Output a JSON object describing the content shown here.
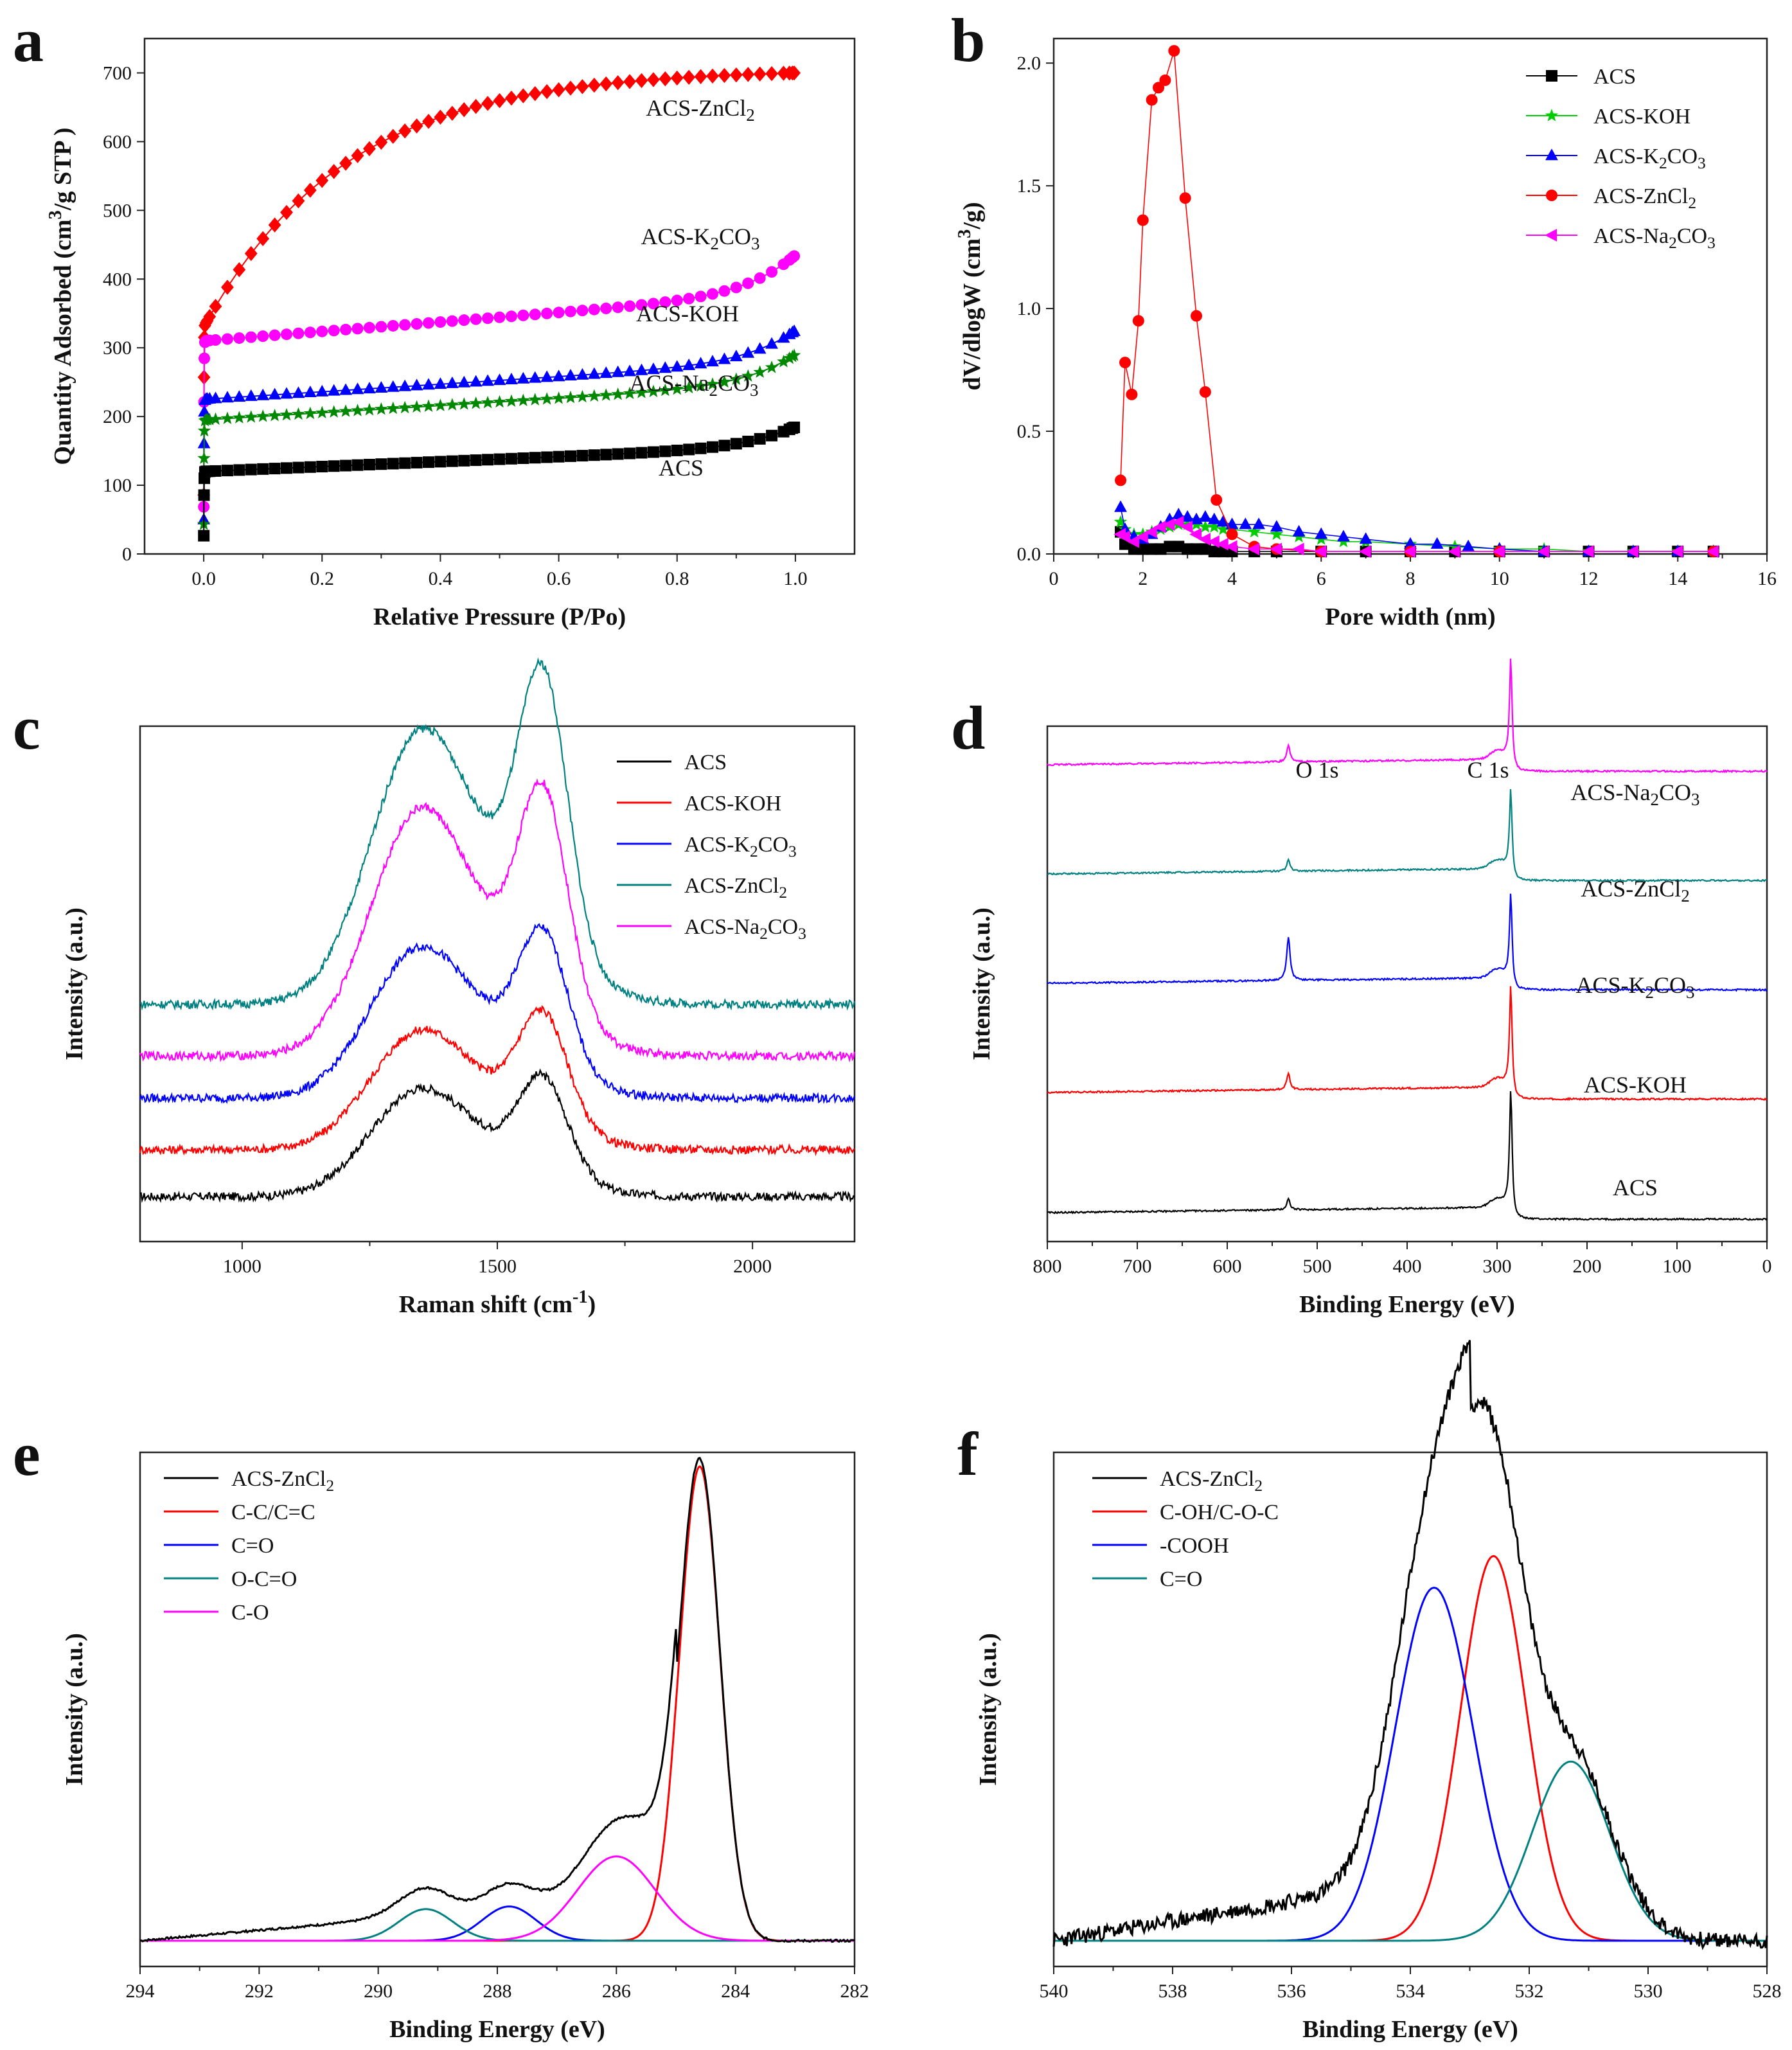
{
  "chart_data": [
    {
      "id": "a",
      "panel_label": "a",
      "type": "scatter",
      "xlabel": "Relative Pressure (P/Po)",
      "ylabel": "Quantity Adsorbed (cm3/g STP )",
      "xlim": [
        -0.1,
        1.1
      ],
      "ylim": [
        0,
        750
      ],
      "xticks": [
        "0.0",
        "0.2",
        "0.4",
        "0.6",
        "0.8",
        "1.0"
      ],
      "yticks": [
        "0",
        "100",
        "200",
        "300",
        "400",
        "500",
        "600",
        "700"
      ],
      "series": [
        {
          "name": "ACS-ZnCl2",
          "color": "#ff0000",
          "marker": "diamond",
          "plateau": 700,
          "knee": 330,
          "shape": "gradual"
        },
        {
          "name": "ACS-K2CO3",
          "color": "#ff00ff",
          "marker": "circle",
          "plateau": 435,
          "knee": 310,
          "shape": "flat"
        },
        {
          "name": "ACS-KOH",
          "color": "#0000ff",
          "marker": "triangle",
          "plateau": 325,
          "knee": 225,
          "shape": "flat"
        },
        {
          "name": "ACS-Na2CO3",
          "color": "#008800",
          "marker": "star",
          "plateau": 290,
          "knee": 195,
          "shape": "flat"
        },
        {
          "name": "ACS",
          "color": "#000000",
          "marker": "square",
          "plateau": 185,
          "knee": 120,
          "shape": "flat"
        }
      ],
      "annotations": [
        "ACS-ZnCl2",
        "ACS-K2CO3",
        "ACS-KOH",
        "ACS-Na2CO3",
        "ACS"
      ]
    },
    {
      "id": "b",
      "panel_label": "b",
      "type": "line",
      "xlabel": "Pore width (nm)",
      "ylabel": "dV/dlogW (cm3/g)",
      "xlim": [
        0,
        16
      ],
      "ylim": [
        0,
        2.1
      ],
      "xticks": [
        "0",
        "2",
        "4",
        "6",
        "8",
        "10",
        "12",
        "14",
        "16"
      ],
      "yticks": [
        "0.0",
        "0.5",
        "1.0",
        "1.5",
        "2.0"
      ],
      "legend": [
        "ACS",
        "ACS-KOH",
        "ACS-K2CO3",
        "ACS-ZnCl2",
        "ACS-Na2CO3"
      ],
      "series": [
        {
          "name": "ACS",
          "color": "#000000",
          "marker": "square",
          "x": [
            1.5,
            1.6,
            1.8,
            2.0,
            2.2,
            2.4,
            2.6,
            2.8,
            3.0,
            3.2,
            3.4,
            3.6,
            3.8,
            4.0,
            4.5,
            5.0,
            6.0,
            7.0,
            8.0,
            9.0,
            10.0,
            11.0,
            12.0,
            13.0,
            14.0,
            14.8
          ],
          "y": [
            0.09,
            0.04,
            0.02,
            0.02,
            0.02,
            0.02,
            0.03,
            0.03,
            0.02,
            0.02,
            0.02,
            0.01,
            0.01,
            0.01,
            0.01,
            0.01,
            0.01,
            0.01,
            0.01,
            0.01,
            0.01,
            0.01,
            0.01,
            0.01,
            0.01,
            0.01
          ]
        },
        {
          "name": "ACS-KOH",
          "color": "#00cc00",
          "marker": "star",
          "x": [
            1.5,
            1.6,
            1.8,
            2.0,
            2.2,
            2.4,
            2.6,
            2.8,
            3.0,
            3.2,
            3.4,
            3.6,
            3.8,
            4.0,
            4.5,
            5.0,
            5.5,
            6.0,
            6.5,
            7.0,
            8.0,
            9.0,
            10.0,
            11.0,
            12.0,
            13.0,
            14.0,
            14.8
          ],
          "y": [
            0.13,
            0.1,
            0.08,
            0.08,
            0.09,
            0.1,
            0.11,
            0.12,
            0.12,
            0.12,
            0.11,
            0.11,
            0.1,
            0.1,
            0.09,
            0.08,
            0.07,
            0.06,
            0.05,
            0.05,
            0.04,
            0.03,
            0.02,
            0.02,
            0.01,
            0.01,
            0.01,
            0.01
          ]
        },
        {
          "name": "ACS-K2CO3",
          "color": "#0000ff",
          "marker": "triangle",
          "x": [
            1.5,
            1.6,
            1.8,
            2.0,
            2.2,
            2.4,
            2.6,
            2.8,
            3.0,
            3.2,
            3.4,
            3.6,
            3.8,
            4.0,
            4.3,
            4.6,
            5.0,
            5.5,
            6.0,
            6.5,
            7.0,
            8.0,
            8.6,
            9.3,
            10.0,
            11.0,
            12.0,
            13.0,
            14.0,
            14.8
          ],
          "y": [
            0.19,
            0.1,
            0.07,
            0.06,
            0.08,
            0.11,
            0.14,
            0.16,
            0.15,
            0.14,
            0.15,
            0.14,
            0.13,
            0.12,
            0.12,
            0.12,
            0.11,
            0.09,
            0.08,
            0.07,
            0.06,
            0.04,
            0.04,
            0.03,
            0.02,
            0.01,
            0.01,
            0.01,
            0.01,
            0.01
          ]
        },
        {
          "name": "ACS-ZnCl2",
          "color": "#ff0000",
          "marker": "circle",
          "x": [
            1.5,
            1.6,
            1.75,
            1.9,
            2.0,
            2.2,
            2.35,
            2.5,
            2.7,
            2.95,
            3.2,
            3.4,
            3.65,
            4.0,
            4.5,
            5.0,
            6.0,
            8.0,
            10.0,
            14.8
          ],
          "y": [
            0.3,
            0.78,
            0.65,
            0.95,
            1.36,
            1.85,
            1.9,
            1.93,
            2.05,
            1.45,
            0.97,
            0.66,
            0.22,
            0.08,
            0.03,
            0.02,
            0.01,
            0.01,
            0.01,
            0.01
          ]
        },
        {
          "name": "ACS-Na2CO3",
          "color": "#ff00ff",
          "marker": "tri-left",
          "x": [
            1.5,
            1.6,
            1.8,
            2.0,
            2.2,
            2.4,
            2.6,
            2.8,
            3.0,
            3.2,
            3.4,
            3.6,
            3.8,
            4.0,
            4.5,
            5.0,
            5.5,
            6.0,
            7.0,
            8.0,
            9.0,
            10.0,
            11.0,
            12.0,
            13.0,
            14.0,
            14.8
          ],
          "y": [
            0.08,
            0.07,
            0.05,
            0.07,
            0.09,
            0.11,
            0.12,
            0.13,
            0.11,
            0.08,
            0.06,
            0.05,
            0.04,
            0.03,
            0.02,
            0.02,
            0.02,
            0.01,
            0.01,
            0.01,
            0.01,
            0.01,
            0.01,
            0.01,
            0.01,
            0.01,
            0.01
          ]
        }
      ]
    },
    {
      "id": "c",
      "panel_label": "c",
      "type": "line",
      "xlabel": "Raman shift (cm-1)",
      "ylabel": "Intensity (a.u.)",
      "xlim": [
        800,
        2200
      ],
      "xticks": [
        "1000",
        "1500",
        "2000"
      ],
      "legend": [
        "ACS",
        "ACS-KOH",
        "ACS-K2CO3",
        "ACS-ZnCl2",
        "ACS-Na2CO3"
      ],
      "peaks": {
        "D_band": 1340,
        "G_band": 1590
      },
      "series": [
        {
          "name": "ACS",
          "color": "#000000",
          "baseline": 0.0,
          "d": 0.2,
          "g": 0.2
        },
        {
          "name": "ACS-KOH",
          "color": "#ff0000",
          "baseline": 0.1,
          "d": 0.22,
          "g": 0.23
        },
        {
          "name": "ACS-K2CO3",
          "color": "#0000ff",
          "baseline": 0.21,
          "d": 0.28,
          "g": 0.28
        },
        {
          "name": "ACS-ZnCl2",
          "color": "#008080",
          "baseline": 0.41,
          "d": 0.5,
          "g": 0.56
        },
        {
          "name": "ACS-Na2CO3",
          "color": "#ff00ff",
          "baseline": 0.3,
          "d": 0.46,
          "g": 0.45
        }
      ]
    },
    {
      "id": "d",
      "panel_label": "d",
      "type": "line",
      "xlabel": "Binding Energy (eV)",
      "ylabel": "Intensity (a.u.)",
      "xlim": [
        800,
        0
      ],
      "xticks": [
        "800",
        "700",
        "600",
        "500",
        "400",
        "300",
        "200",
        "100",
        "0"
      ],
      "peak_labels": [
        "O 1s",
        "C 1s"
      ],
      "peak_positions": {
        "O 1s": 532,
        "C 1s": 284.6
      },
      "series": [
        {
          "name": "ACS",
          "color": "#000000",
          "offset": 0.0,
          "o1s": 0.02,
          "c1s": 0.22
        },
        {
          "name": "ACS-KOH",
          "color": "#ff0000",
          "offset": 0.22,
          "o1s": 0.03,
          "c1s": 0.19
        },
        {
          "name": "ACS-K2CO3",
          "color": "#0000ff",
          "offset": 0.42,
          "o1s": 0.08,
          "c1s": 0.16
        },
        {
          "name": "ACS-ZnCl2",
          "color": "#008080",
          "offset": 0.62,
          "o1s": 0.02,
          "c1s": 0.15
        },
        {
          "name": "ACS-Na2CO3",
          "color": "#ff00ff",
          "offset": 0.82,
          "o1s": 0.03,
          "c1s": 0.19
        }
      ],
      "annotations": [
        "ACS-Na2CO3",
        "ACS-ZnCl2",
        "ACS-K2CO3",
        "ACS-KOH",
        "ACS"
      ]
    },
    {
      "id": "e",
      "panel_label": "e",
      "type": "line",
      "xlabel": "Binding Energy (eV)",
      "ylabel": "Intensity (a.u.)",
      "xlim": [
        294,
        282
      ],
      "xticks": [
        "294",
        "292",
        "290",
        "288",
        "286",
        "284",
        "282"
      ],
      "legend": [
        "ACS-ZnCl2",
        "C-C/C=C",
        "C=O",
        "O-C=O",
        "C-O"
      ],
      "series": [
        {
          "name": "ACS-ZnCl2",
          "color": "#000000",
          "kind": "envelope"
        },
        {
          "name": "C-C/C=C",
          "color": "#ff0000",
          "center": 284.6,
          "height": 0.9,
          "width": 0.34
        },
        {
          "name": "C=O",
          "color": "#0000ff",
          "center": 287.8,
          "height": 0.065,
          "width": 0.45
        },
        {
          "name": "O-C=O",
          "color": "#008080",
          "center": 289.2,
          "height": 0.06,
          "width": 0.45
        },
        {
          "name": "C-O",
          "color": "#ff00ff",
          "center": 286.0,
          "height": 0.16,
          "width": 0.65
        }
      ]
    },
    {
      "id": "f",
      "panel_label": "f",
      "type": "line",
      "xlabel": "Binding Energy (eV)",
      "ylabel": "Intensity (a.u.)",
      "xlim": [
        540,
        528
      ],
      "xticks": [
        "540",
        "538",
        "536",
        "534",
        "532",
        "530",
        "528"
      ],
      "legend": [
        "ACS-ZnCl2",
        "C-OH/C-O-C",
        "-COOH",
        "C=O"
      ],
      "series": [
        {
          "name": "ACS-ZnCl2",
          "color": "#000000",
          "kind": "envelope"
        },
        {
          "name": "C-OH/C-O-C",
          "color": "#ff0000",
          "center": 532.6,
          "height": 0.73,
          "width": 0.55
        },
        {
          "name": "-COOH",
          "color": "#0000ff",
          "center": 533.6,
          "height": 0.67,
          "width": 0.65
        },
        {
          "name": "C=O",
          "color": "#008080",
          "center": 531.3,
          "height": 0.34,
          "width": 0.65
        }
      ]
    }
  ]
}
